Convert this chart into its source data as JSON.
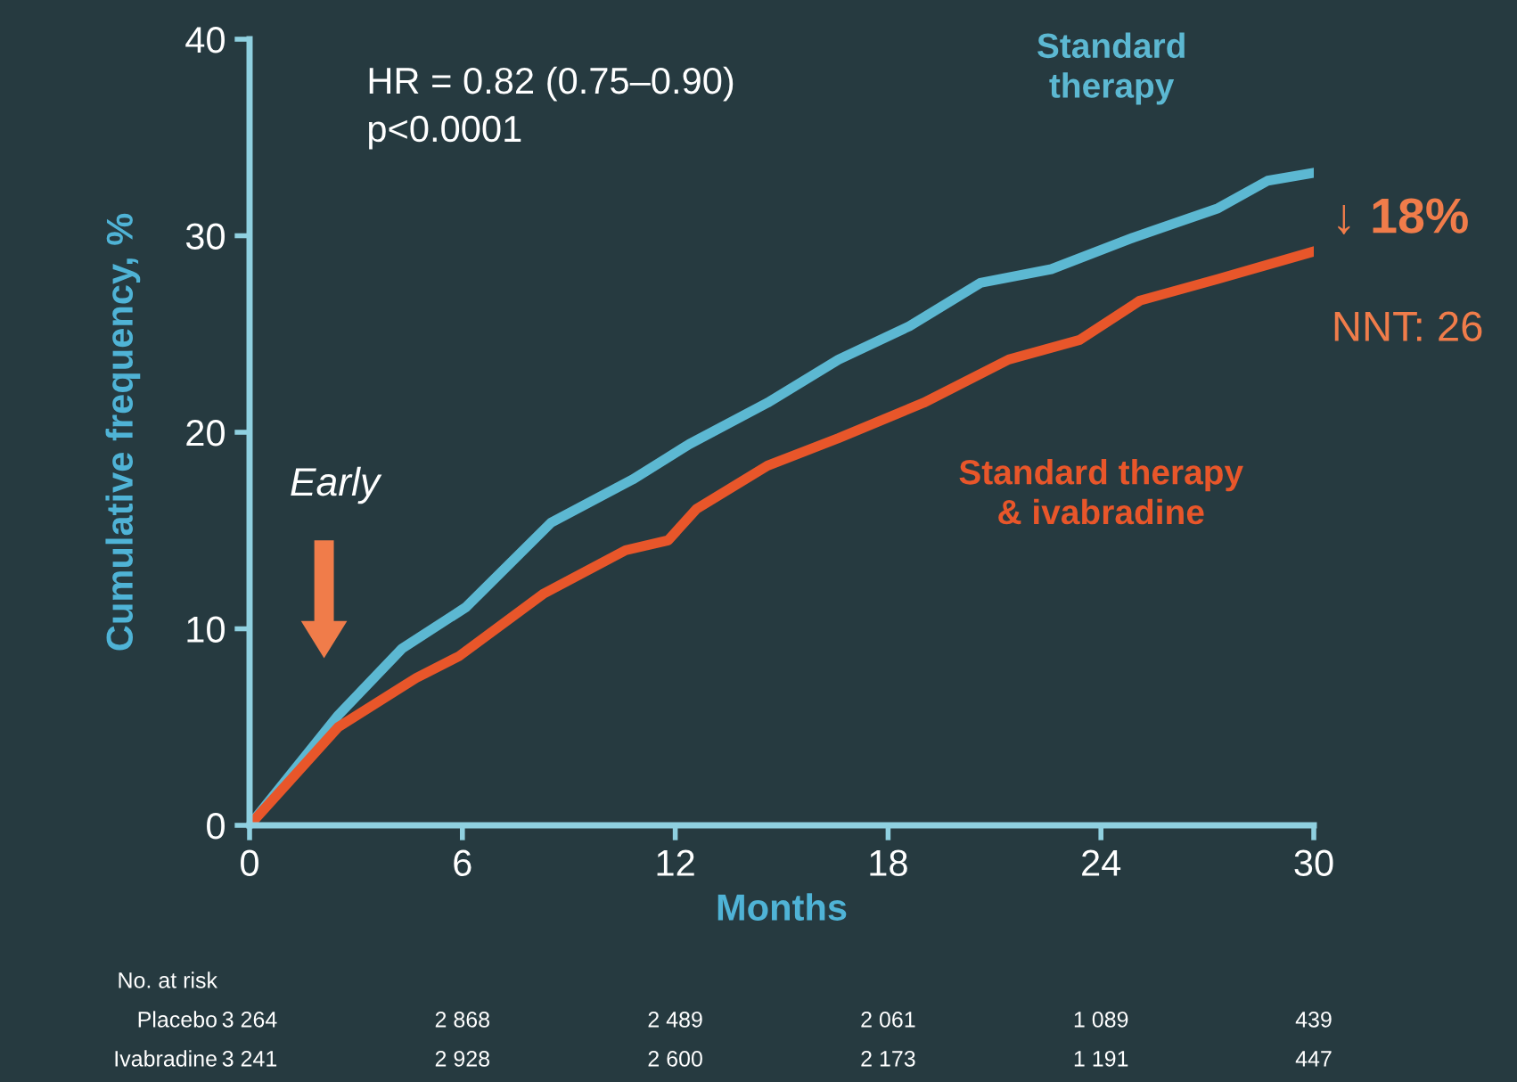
{
  "chart_data": {
    "type": "line",
    "xlabel": "Months",
    "ylabel": "Cumulative frequency, %",
    "xlim": [
      0,
      30
    ],
    "xticks": [
      0,
      6,
      12,
      18,
      24,
      30
    ],
    "ylim": [
      0,
      40
    ],
    "yticks": [
      0,
      10,
      20,
      30,
      40
    ],
    "grid": false,
    "legend": false,
    "marker": "none",
    "line_style": "solid",
    "series": [
      {
        "name": "Standard\ntherapy",
        "color": "#5cb8d2",
        "x": [
          0,
          2.5,
          4.3,
          6.1,
          8.5,
          10.8,
          12.4,
          14.6,
          16.6,
          18.6,
          20.6,
          22.6,
          24.9,
          27.3,
          28.7,
          30
        ],
        "values": [
          0,
          5.6,
          9.0,
          11.1,
          15.4,
          17.6,
          19.4,
          21.5,
          23.7,
          25.4,
          27.6,
          28.3,
          29.9,
          31.4,
          32.8,
          33.2
        ]
      },
      {
        "name": "Standard therapy\n& ivabradine",
        "color": "#e8562a",
        "x": [
          0,
          2.5,
          4.7,
          5.9,
          8.3,
          10.6,
          11.8,
          12.6,
          14.6,
          16.6,
          19.0,
          21.4,
          23.4,
          25.1,
          27.3,
          30
        ],
        "values": [
          0,
          5.0,
          7.5,
          8.6,
          11.8,
          14.0,
          14.5,
          16.1,
          18.3,
          19.7,
          21.5,
          23.7,
          24.7,
          26.7,
          27.8,
          29.2
        ]
      }
    ],
    "annotations": [
      "HR = 0.82 (0.75–0.90)\np<0.0001",
      "Early",
      "↓ 18%",
      "NNT: 26",
      "No. at risk",
      "Placebo",
      "3 264",
      "2 868",
      "2 489",
      "2 061",
      "1 089",
      "439",
      "Ivabradine",
      "3 241",
      "2 928",
      "2 600",
      "2 173",
      "1 191",
      "447"
    ]
  }
}
